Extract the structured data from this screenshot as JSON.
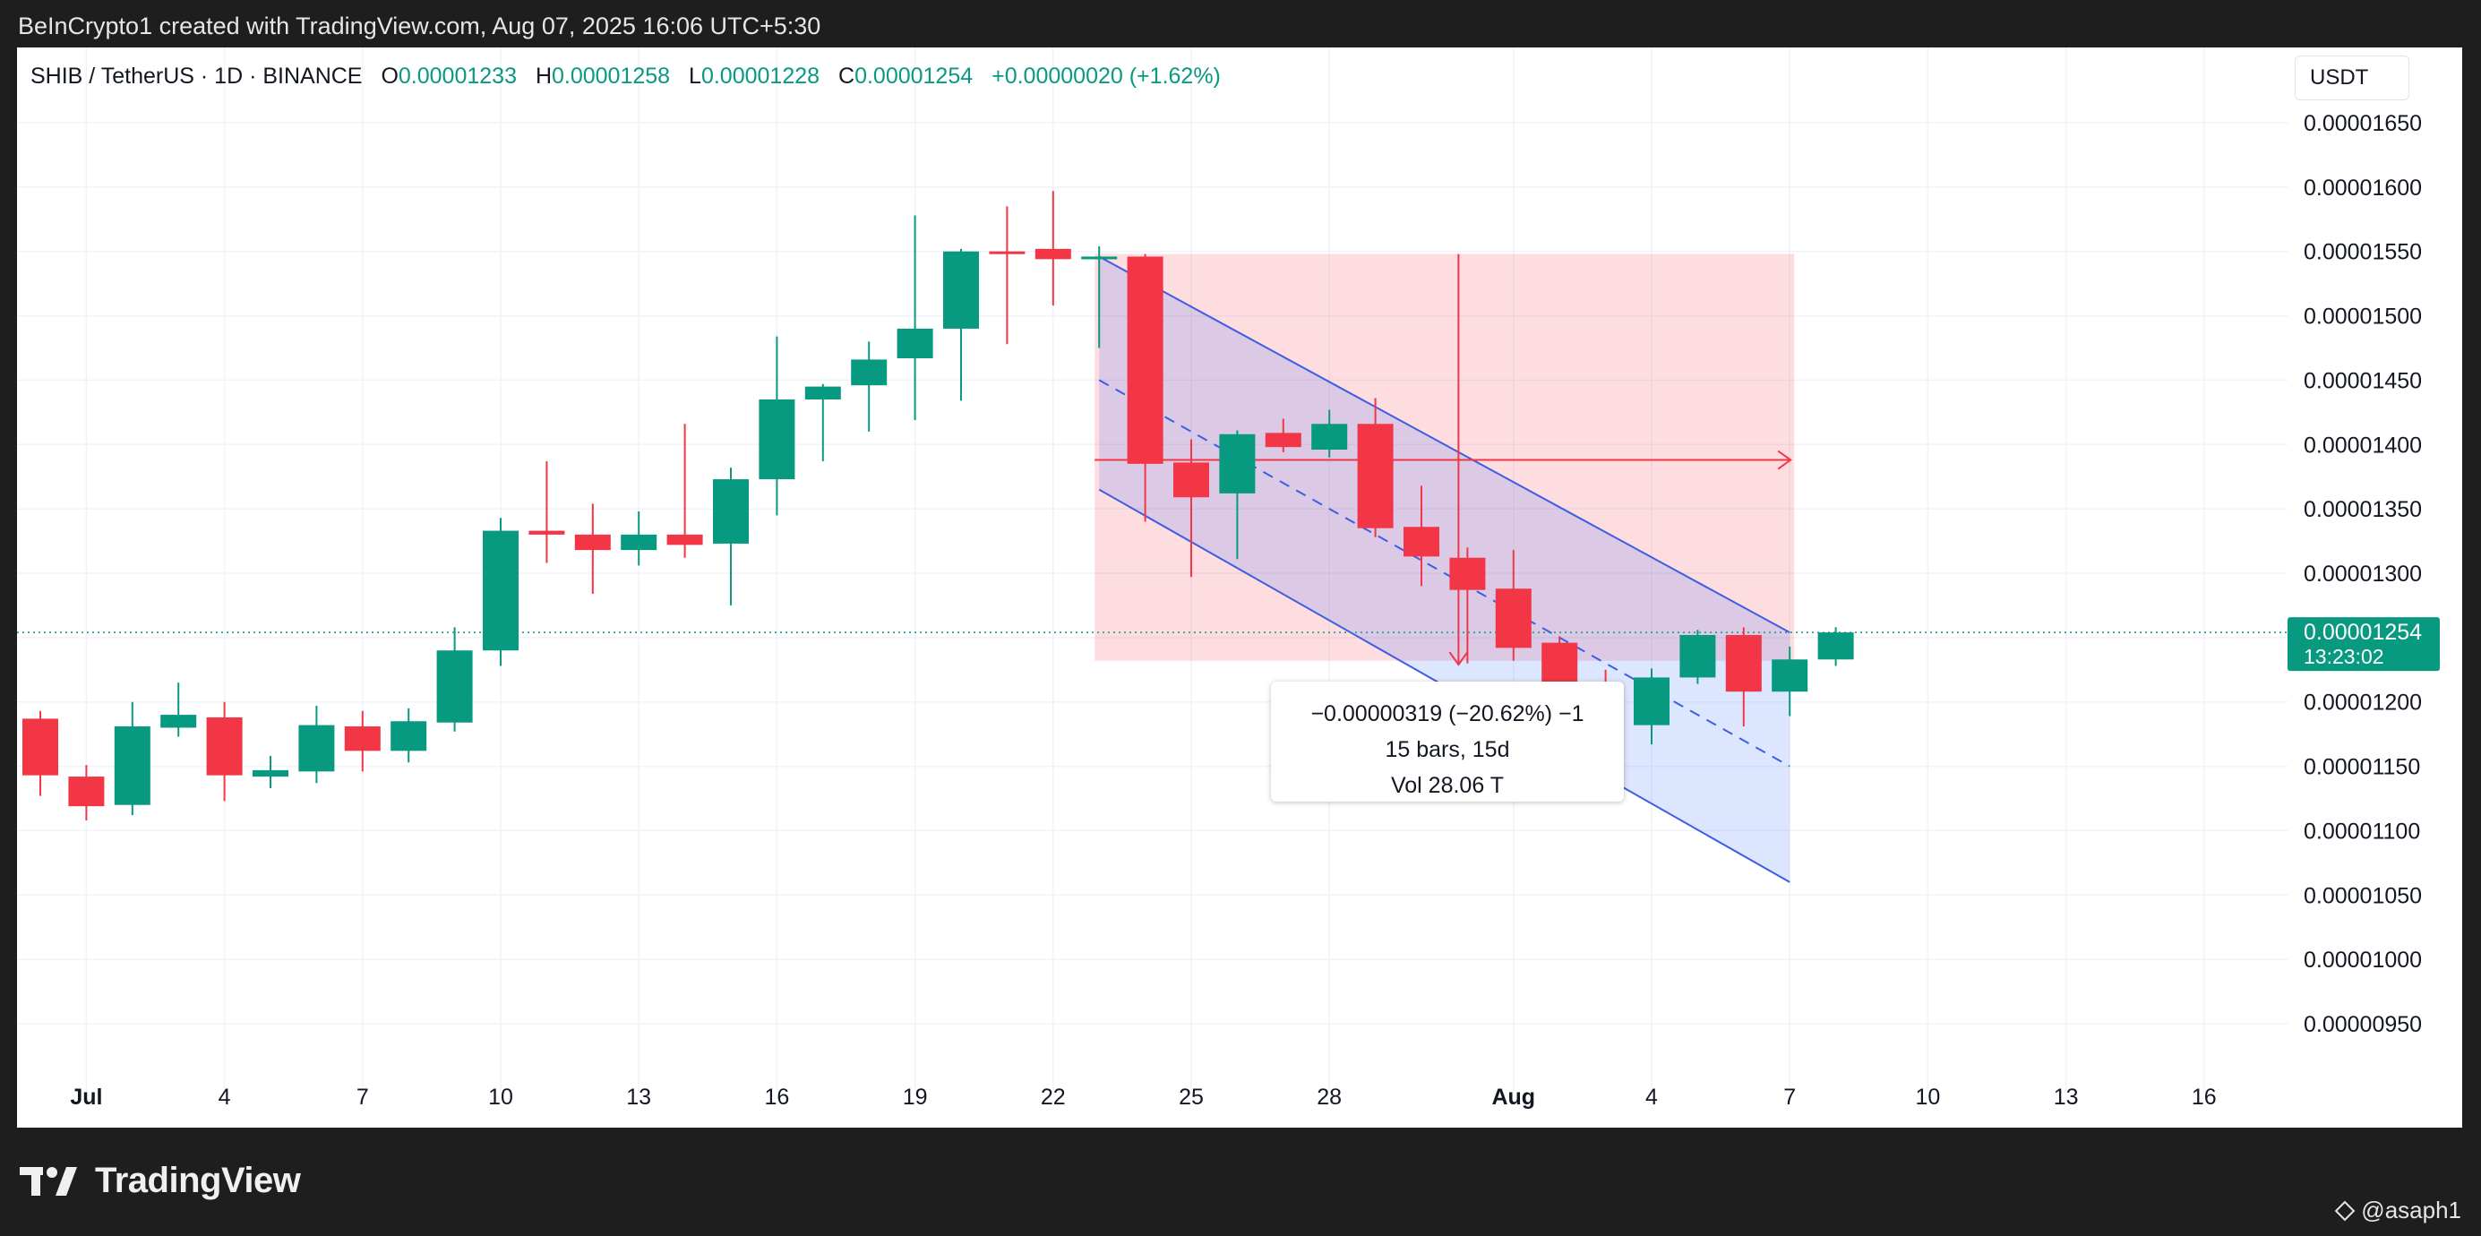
{
  "caption": "BeInCrypto1 created with TradingView.com, Aug 07, 2025 16:06 UTC+5:30",
  "header": {
    "symbol": "SHIB / TetherUS · 1D · BINANCE",
    "o_label": "O",
    "o_value": "0.00001233",
    "h_label": "H",
    "h_value": "0.00001258",
    "l_label": "L",
    "l_value": "0.00001228",
    "c_label": "C",
    "c_value": "0.00001254",
    "change": "+0.00000020 (+1.62%)"
  },
  "currency": "USDT",
  "measure": {
    "line1": "−0.00000319 (−20.62%) −1",
    "line2": "15 bars, 15d",
    "line3": "Vol 28.06 T"
  },
  "footer": {
    "logo": "TradingView",
    "handle": "@asaph1"
  },
  "colors": {
    "up": "#089981",
    "down": "#f23645",
    "channel": "#3d5ee1"
  },
  "chart_data": {
    "type": "candlestick",
    "y_ticks": [
      "0.00001650",
      "0.00001600",
      "0.00001550",
      "0.00001500",
      "0.00001450",
      "0.00001400",
      "0.00001350",
      "0.00001300",
      "0.00001250",
      "0.00001200",
      "0.00001150",
      "0.00001100",
      "0.00001050",
      "0.00001000",
      "0.00000950"
    ],
    "y_range": [
      9.1e-06,
      1.69e-05
    ],
    "x_ticks": [
      {
        "label": "Jul",
        "idx": 1,
        "bold": true
      },
      {
        "label": "4",
        "idx": 4
      },
      {
        "label": "7",
        "idx": 7
      },
      {
        "label": "10",
        "idx": 10
      },
      {
        "label": "13",
        "idx": 13
      },
      {
        "label": "16",
        "idx": 16
      },
      {
        "label": "19",
        "idx": 19
      },
      {
        "label": "22",
        "idx": 22
      },
      {
        "label": "25",
        "idx": 25
      },
      {
        "label": "28",
        "idx": 28
      },
      {
        "label": "Aug",
        "idx": 32,
        "bold": true
      },
      {
        "label": "4",
        "idx": 35
      },
      {
        "label": "7",
        "idx": 38
      },
      {
        "label": "10",
        "idx": 41
      },
      {
        "label": "13",
        "idx": 44
      },
      {
        "label": "16",
        "idx": 47
      }
    ],
    "last_price": "0.00001254",
    "countdown": "13:23:02",
    "candles": [
      {
        "o": 1.187e-05,
        "h": 1.193e-05,
        "l": 1.127e-05,
        "c": 1.143e-05
      },
      {
        "o": 1.142e-05,
        "h": 1.151e-05,
        "l": 1.108e-05,
        "c": 1.119e-05
      },
      {
        "o": 1.12e-05,
        "h": 1.2e-05,
        "l": 1.112e-05,
        "c": 1.181e-05
      },
      {
        "o": 1.18e-05,
        "h": 1.215e-05,
        "l": 1.173e-05,
        "c": 1.19e-05
      },
      {
        "o": 1.188e-05,
        "h": 1.2e-05,
        "l": 1.123e-05,
        "c": 1.143e-05
      },
      {
        "o": 1.142e-05,
        "h": 1.158e-05,
        "l": 1.133e-05,
        "c": 1.147e-05
      },
      {
        "o": 1.146e-05,
        "h": 1.197e-05,
        "l": 1.137e-05,
        "c": 1.182e-05
      },
      {
        "o": 1.181e-05,
        "h": 1.193e-05,
        "l": 1.146e-05,
        "c": 1.162e-05
      },
      {
        "o": 1.162e-05,
        "h": 1.195e-05,
        "l": 1.153e-05,
        "c": 1.185e-05
      },
      {
        "o": 1.184e-05,
        "h": 1.258e-05,
        "l": 1.177e-05,
        "c": 1.24e-05
      },
      {
        "o": 1.24e-05,
        "h": 1.343e-05,
        "l": 1.228e-05,
        "c": 1.333e-05
      },
      {
        "o": 1.333e-05,
        "h": 1.387e-05,
        "l": 1.308e-05,
        "c": 1.33e-05
      },
      {
        "o": 1.33e-05,
        "h": 1.354e-05,
        "l": 1.284e-05,
        "c": 1.318e-05
      },
      {
        "o": 1.318e-05,
        "h": 1.348e-05,
        "l": 1.306e-05,
        "c": 1.33e-05
      },
      {
        "o": 1.33e-05,
        "h": 1.416e-05,
        "l": 1.312e-05,
        "c": 1.322e-05
      },
      {
        "o": 1.323e-05,
        "h": 1.382e-05,
        "l": 1.275e-05,
        "c": 1.373e-05
      },
      {
        "o": 1.373e-05,
        "h": 1.484e-05,
        "l": 1.345e-05,
        "c": 1.435e-05
      },
      {
        "o": 1.435e-05,
        "h": 1.447e-05,
        "l": 1.387e-05,
        "c": 1.445e-05
      },
      {
        "o": 1.446e-05,
        "h": 1.48e-05,
        "l": 1.41e-05,
        "c": 1.466e-05
      },
      {
        "o": 1.467e-05,
        "h": 1.578e-05,
        "l": 1.419e-05,
        "c": 1.49e-05
      },
      {
        "o": 1.49e-05,
        "h": 1.552e-05,
        "l": 1.434e-05,
        "c": 1.55e-05
      },
      {
        "o": 1.55e-05,
        "h": 1.585e-05,
        "l": 1.478e-05,
        "c": 1.548e-05
      },
      {
        "o": 1.552e-05,
        "h": 1.597e-05,
        "l": 1.508e-05,
        "c": 1.544e-05
      },
      {
        "o": 1.546e-05,
        "h": 1.554e-05,
        "l": 1.475e-05,
        "c": 1.546e-05
      },
      {
        "o": 1.546e-05,
        "h": 1.548e-05,
        "l": 1.34e-05,
        "c": 1.385e-05
      },
      {
        "o": 1.386e-05,
        "h": 1.404e-05,
        "l": 1.297e-05,
        "c": 1.359e-05
      },
      {
        "o": 1.362e-05,
        "h": 1.411e-05,
        "l": 1.311e-05,
        "c": 1.408e-05
      },
      {
        "o": 1.409e-05,
        "h": 1.42e-05,
        "l": 1.394e-05,
        "c": 1.398e-05
      },
      {
        "o": 1.396e-05,
        "h": 1.427e-05,
        "l": 1.39e-05,
        "c": 1.416e-05
      },
      {
        "o": 1.416e-05,
        "h": 1.436e-05,
        "l": 1.328e-05,
        "c": 1.335e-05
      },
      {
        "o": 1.336e-05,
        "h": 1.368e-05,
        "l": 1.29e-05,
        "c": 1.313e-05
      },
      {
        "o": 1.312e-05,
        "h": 1.32e-05,
        "l": 1.23e-05,
        "c": 1.287e-05
      },
      {
        "o": 1.288e-05,
        "h": 1.318e-05,
        "l": 1.232e-05,
        "c": 1.242e-05
      },
      {
        "o": 1.246e-05,
        "h": 1.251e-05,
        "l": 1.166e-05,
        "c": 1.206e-05
      },
      {
        "o": 1.211e-05,
        "h": 1.225e-05,
        "l": 1.162e-05,
        "c": 1.185e-05
      },
      {
        "o": 1.182e-05,
        "h": 1.226e-05,
        "l": 1.167e-05,
        "c": 1.219e-05
      },
      {
        "o": 1.219e-05,
        "h": 1.256e-05,
        "l": 1.214e-05,
        "c": 1.252e-05
      },
      {
        "o": 1.252e-05,
        "h": 1.258e-05,
        "l": 1.181e-05,
        "c": 1.208e-05
      },
      {
        "o": 1.208e-05,
        "h": 1.243e-05,
        "l": 1.189e-05,
        "c": 1.233e-05
      },
      {
        "o": 1.233e-05,
        "h": 1.258e-05,
        "l": 1.228e-05,
        "c": 1.254e-05
      }
    ],
    "channel": {
      "upper": [
        {
          "idx": 23,
          "price": 1.546e-05
        },
        {
          "idx": 38,
          "price": 1.254e-05
        }
      ],
      "middle": [
        {
          "idx": 23,
          "price": 1.45e-05
        },
        {
          "idx": 38,
          "price": 1.15e-05
        }
      ],
      "lower": [
        {
          "idx": 23,
          "price": 1.365e-05
        },
        {
          "idx": 38,
          "price": 1.06e-05
        }
      ]
    },
    "risk_zone": {
      "from_idx": 23,
      "to_idx": 38,
      "top": 1.548e-05,
      "bottom": 1.232e-05,
      "mid": 1.388e-05
    },
    "measure_arrow": {
      "idx": 31,
      "from": 1.548e-05,
      "to": 1.229e-05
    }
  }
}
